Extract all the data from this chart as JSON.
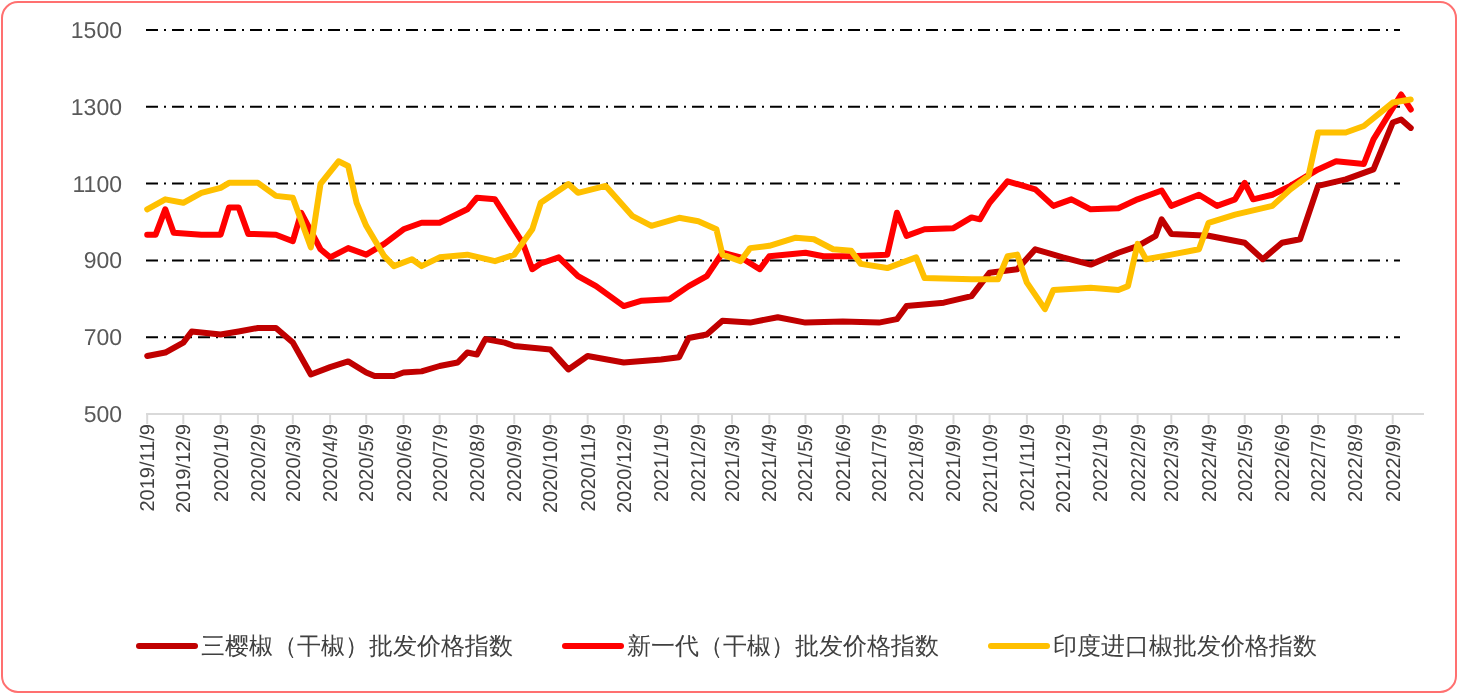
{
  "chart_data": {
    "type": "line",
    "xlim": [
      "2019-11-08",
      "2022-10-05"
    ],
    "ylim": [
      500,
      1500
    ],
    "yticks": [
      500,
      700,
      900,
      1100,
      1300,
      1500
    ],
    "grid": "y",
    "legend": "bottom",
    "line_style": "solid",
    "xticks": [
      {
        "value": "2019-11-09",
        "label": "2019/11/9"
      },
      {
        "value": "2019-12-09",
        "label": "2019/12/9"
      },
      {
        "value": "2020-01-09",
        "label": "2020/1/9"
      },
      {
        "value": "2020-02-09",
        "label": "2020/2/9"
      },
      {
        "value": "2020-03-09",
        "label": "2020/3/9"
      },
      {
        "value": "2020-04-09",
        "label": "2020/4/9"
      },
      {
        "value": "2020-05-09",
        "label": "2020/5/9"
      },
      {
        "value": "2020-06-09",
        "label": "2020/6/9"
      },
      {
        "value": "2020-07-09",
        "label": "2020/7/9"
      },
      {
        "value": "2020-08-09",
        "label": "2020/8/9"
      },
      {
        "value": "2020-09-09",
        "label": "2020/9/9"
      },
      {
        "value": "2020-10-09",
        "label": "2020/10/9"
      },
      {
        "value": "2020-11-09",
        "label": "2020/11/9"
      },
      {
        "value": "2020-12-09",
        "label": "2020/12/9"
      },
      {
        "value": "2021-01-09",
        "label": "2021/1/9"
      },
      {
        "value": "2021-02-09",
        "label": "2021/2/9"
      },
      {
        "value": "2021-03-09",
        "label": "2021/3/9"
      },
      {
        "value": "2021-04-09",
        "label": "2021/4/9"
      },
      {
        "value": "2021-05-09",
        "label": "2021/5/9"
      },
      {
        "value": "2021-06-09",
        "label": "2021/6/9"
      },
      {
        "value": "2021-07-09",
        "label": "2021/7/9"
      },
      {
        "value": "2021-08-09",
        "label": "2021/8/9"
      },
      {
        "value": "2021-09-09",
        "label": "2021/9/9"
      },
      {
        "value": "2021-10-09",
        "label": "2021/10/9"
      },
      {
        "value": "2021-11-09",
        "label": "2021/11/9"
      },
      {
        "value": "2021-12-09",
        "label": "2021/12/9"
      },
      {
        "value": "2022-01-09",
        "label": "2022/1/9"
      },
      {
        "value": "2022-02-09",
        "label": "2022/2/9"
      },
      {
        "value": "2022-03-09",
        "label": "2022/3/9"
      },
      {
        "value": "2022-04-09",
        "label": "2022/4/9"
      },
      {
        "value": "2022-05-09",
        "label": "2022/5/9"
      },
      {
        "value": "2022-06-09",
        "label": "2022/6/9"
      },
      {
        "value": "2022-07-09",
        "label": "2022/7/9"
      },
      {
        "value": "2022-08-09",
        "label": "2022/8/9"
      },
      {
        "value": "2022-09-09",
        "label": "2022/9/9"
      }
    ],
    "series": [
      {
        "name": "三樱椒（干椒）批发价格指数",
        "color": "#c00000",
        "x": [
          "2019-11-09",
          "2019-11-24",
          "2019-12-09",
          "2019-12-16",
          "2020-01-09",
          "2020-01-24",
          "2020-02-09",
          "2020-02-24",
          "2020-03-09",
          "2020-03-24",
          "2020-04-09",
          "2020-04-24",
          "2020-05-09",
          "2020-05-16",
          "2020-06-01",
          "2020-06-09",
          "2020-06-24",
          "2020-07-09",
          "2020-07-24",
          "2020-08-01",
          "2020-08-09",
          "2020-08-16",
          "2020-09-01",
          "2020-09-09",
          "2020-10-09",
          "2020-10-24",
          "2020-11-09",
          "2020-12-09",
          "2021-01-09",
          "2021-01-24",
          "2021-02-01",
          "2021-02-16",
          "2021-03-01",
          "2021-03-24",
          "2021-04-16",
          "2021-05-09",
          "2021-06-09",
          "2021-07-09",
          "2021-07-24",
          "2021-08-01",
          "2021-09-01",
          "2021-09-24",
          "2021-10-09",
          "2021-11-01",
          "2021-11-16",
          "2021-12-09",
          "2022-01-01",
          "2022-01-24",
          "2022-02-09",
          "2022-02-24",
          "2022-03-01",
          "2022-03-09",
          "2022-04-09",
          "2022-05-09",
          "2022-05-24",
          "2022-06-09",
          "2022-06-24",
          "2022-07-09",
          "2022-08-01",
          "2022-08-24",
          "2022-09-09",
          "2022-09-16",
          "2022-09-24"
        ],
        "values": [
          651,
          660,
          686,
          715,
          707,
          715,
          724,
          724,
          686,
          603,
          622,
          637,
          608,
          599,
          599,
          608,
          611,
          625,
          634,
          660,
          655,
          695,
          686,
          677,
          668,
          616,
          651,
          634,
          642,
          648,
          698,
          707,
          743,
          738,
          752,
          738,
          741,
          738,
          747,
          781,
          790,
          807,
          868,
          877,
          929,
          908,
          889,
          920,
          937,
          964,
          1007,
          969,
          964,
          946,
          903,
          946,
          955,
          1094,
          1111,
          1137,
          1259,
          1267,
          1245
        ]
      },
      {
        "name": "新一代（干椒）批发价格指数",
        "color": "#ff0000",
        "x": [
          "2019-11-09",
          "2019-11-16",
          "2019-11-24",
          "2019-12-01",
          "2019-12-24",
          "2020-01-09",
          "2020-01-16",
          "2020-01-24",
          "2020-02-01",
          "2020-02-24",
          "2020-03-09",
          "2020-03-16",
          "2020-04-01",
          "2020-04-09",
          "2020-04-24",
          "2020-05-09",
          "2020-05-24",
          "2020-06-09",
          "2020-06-24",
          "2020-07-09",
          "2020-08-01",
          "2020-08-09",
          "2020-08-24",
          "2020-09-16",
          "2020-09-24",
          "2020-10-01",
          "2020-10-16",
          "2020-11-01",
          "2020-11-16",
          "2020-12-09",
          "2020-12-24",
          "2021-01-16",
          "2021-02-01",
          "2021-02-16",
          "2021-03-01",
          "2021-03-16",
          "2021-04-01",
          "2021-04-09",
          "2021-05-09",
          "2021-05-24",
          "2021-06-16",
          "2021-07-16",
          "2021-07-24",
          "2021-08-01",
          "2021-08-16",
          "2021-09-09",
          "2021-09-24",
          "2021-10-01",
          "2021-10-09",
          "2021-10-24",
          "2021-11-16",
          "2021-12-01",
          "2021-12-16",
          "2022-01-01",
          "2022-01-24",
          "2022-02-09",
          "2022-03-01",
          "2022-03-09",
          "2022-04-01",
          "2022-04-16",
          "2022-05-01",
          "2022-05-09",
          "2022-05-16",
          "2022-06-01",
          "2022-06-16",
          "2022-07-09",
          "2022-07-24",
          "2022-08-16",
          "2022-08-24",
          "2022-09-16",
          "2022-09-24"
        ],
        "values": [
          967,
          967,
          1033,
          972,
          967,
          967,
          1038,
          1038,
          969,
          967,
          950,
          1024,
          929,
          908,
          932,
          915,
          943,
          981,
          998,
          998,
          1033,
          1063,
          1059,
          946,
          877,
          892,
          908,
          859,
          833,
          781,
          795,
          799,
          833,
          859,
          920,
          908,
          877,
          911,
          920,
          911,
          911,
          915,
          1024,
          964,
          981,
          984,
          1012,
          1007,
          1050,
          1106,
          1085,
          1042,
          1059,
          1033,
          1036,
          1059,
          1082,
          1042,
          1071,
          1042,
          1059,
          1102,
          1059,
          1071,
          1094,
          1137,
          1158,
          1151,
          1215,
          1332,
          1293
        ]
      },
      {
        "name": "印度进口椒批发价格指数",
        "color": "#ffc000",
        "x": [
          "2019-11-09",
          "2019-11-24",
          "2019-12-09",
          "2019-12-24",
          "2020-01-09",
          "2020-01-16",
          "2020-02-09",
          "2020-02-24",
          "2020-03-09",
          "2020-03-24",
          "2020-04-01",
          "2020-04-16",
          "2020-04-24",
          "2020-05-01",
          "2020-05-09",
          "2020-05-24",
          "2020-06-01",
          "2020-06-16",
          "2020-06-24",
          "2020-07-09",
          "2020-08-01",
          "2020-08-24",
          "2020-09-09",
          "2020-09-24",
          "2020-10-01",
          "2020-10-24",
          "2020-11-01",
          "2020-11-24",
          "2020-12-16",
          "2021-01-01",
          "2021-01-24",
          "2021-02-09",
          "2021-02-24",
          "2021-03-01",
          "2021-03-16",
          "2021-03-24",
          "2021-04-09",
          "2021-05-01",
          "2021-05-16",
          "2021-06-01",
          "2021-06-16",
          "2021-06-24",
          "2021-07-16",
          "2021-08-09",
          "2021-08-16",
          "2021-09-24",
          "2021-10-16",
          "2021-10-24",
          "2021-11-01",
          "2021-11-09",
          "2021-11-24",
          "2021-12-01",
          "2022-01-01",
          "2022-01-24",
          "2022-02-01",
          "2022-02-09",
          "2022-02-16",
          "2022-03-09",
          "2022-04-01",
          "2022-04-09",
          "2022-05-01",
          "2022-06-01",
          "2022-06-16",
          "2022-07-01",
          "2022-07-09",
          "2022-08-01",
          "2022-08-16",
          "2022-09-09",
          "2022-09-24"
        ],
        "values": [
          1033,
          1059,
          1050,
          1076,
          1089,
          1102,
          1102,
          1068,
          1063,
          934,
          1099,
          1158,
          1146,
          1050,
          990,
          911,
          885,
          903,
          885,
          908,
          915,
          898,
          915,
          981,
          1050,
          1099,
          1076,
          1094,
          1016,
          990,
          1011,
          1002,
          981,
          915,
          898,
          932,
          938,
          959,
          955,
          929,
          925,
          891,
          880,
          908,
          854,
          851,
          851,
          911,
          915,
          842,
          773,
          823,
          829,
          823,
          833,
          943,
          903,
          915,
          929,
          998,
          1019,
          1042,
          1085,
          1120,
          1233,
          1233,
          1250,
          1311,
          1319
        ]
      }
    ]
  }
}
